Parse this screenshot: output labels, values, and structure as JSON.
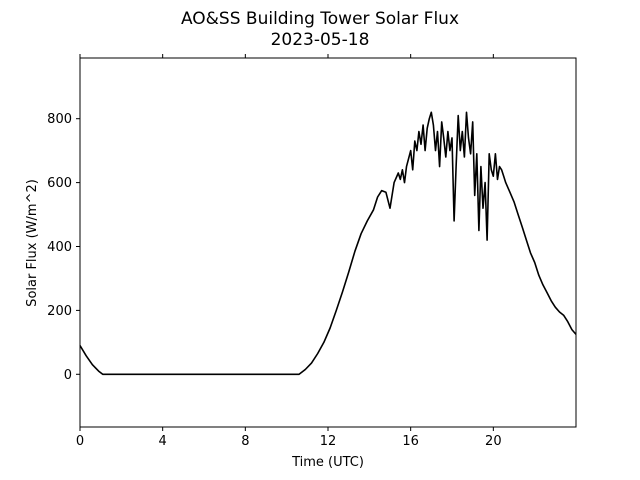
{
  "chart_data": {
    "type": "line",
    "title": "AO&SS Building Tower Solar Flux",
    "subtitle": "2023-05-18",
    "xlabel": "Time (UTC)",
    "ylabel": "Solar Flux (W/m^2)",
    "xlim": [
      0,
      24
    ],
    "ylim": [
      -165,
      990
    ],
    "xticks": [
      0,
      4,
      8,
      12,
      16,
      20
    ],
    "yticks": [
      0,
      200,
      400,
      600,
      800
    ],
    "grid": false,
    "line_color": "#000000",
    "series": [
      {
        "x": [
          0,
          0.3,
          0.6,
          0.9,
          1.1,
          2,
          4,
          6,
          8,
          10,
          10.6,
          10.9,
          11.2,
          11.5,
          11.8,
          12.1,
          12.4,
          12.7,
          13.0,
          13.3,
          13.6,
          13.9,
          14.2,
          14.4,
          14.6,
          14.8,
          15.0,
          15.2,
          15.4,
          15.5,
          15.6,
          15.7,
          15.8,
          16.0,
          16.1,
          16.2,
          16.3,
          16.4,
          16.5,
          16.6,
          16.7,
          16.8,
          16.9,
          17.0,
          17.1,
          17.2,
          17.3,
          17.4,
          17.5,
          17.6,
          17.7,
          17.8,
          17.9,
          18.0,
          18.1,
          18.2,
          18.3,
          18.4,
          18.5,
          18.6,
          18.7,
          18.8,
          18.9,
          19.0,
          19.1,
          19.2,
          19.3,
          19.4,
          19.5,
          19.6,
          19.7,
          19.8,
          19.9,
          20.0,
          20.1,
          20.2,
          20.3,
          20.4,
          20.5,
          20.6,
          20.8,
          21.0,
          21.2,
          21.4,
          21.6,
          21.8,
          22.0,
          22.2,
          22.4,
          22.6,
          22.8,
          23.0,
          23.2,
          23.4,
          23.6,
          23.8,
          24.0
        ],
        "y": [
          90,
          58,
          30,
          10,
          0,
          0,
          0,
          0,
          0,
          0,
          0,
          15,
          35,
          65,
          100,
          145,
          200,
          258,
          320,
          385,
          440,
          480,
          515,
          555,
          575,
          570,
          520,
          600,
          630,
          610,
          640,
          600,
          650,
          700,
          640,
          730,
          700,
          760,
          720,
          780,
          700,
          770,
          800,
          820,
          780,
          700,
          760,
          650,
          790,
          740,
          680,
          760,
          700,
          740,
          480,
          650,
          810,
          700,
          760,
          680,
          820,
          740,
          690,
          790,
          560,
          690,
          450,
          650,
          520,
          600,
          420,
          690,
          640,
          620,
          690,
          610,
          650,
          640,
          620,
          600,
          570,
          540,
          500,
          460,
          420,
          380,
          350,
          310,
          280,
          255,
          230,
          210,
          195,
          185,
          165,
          140,
          125
        ]
      }
    ]
  }
}
